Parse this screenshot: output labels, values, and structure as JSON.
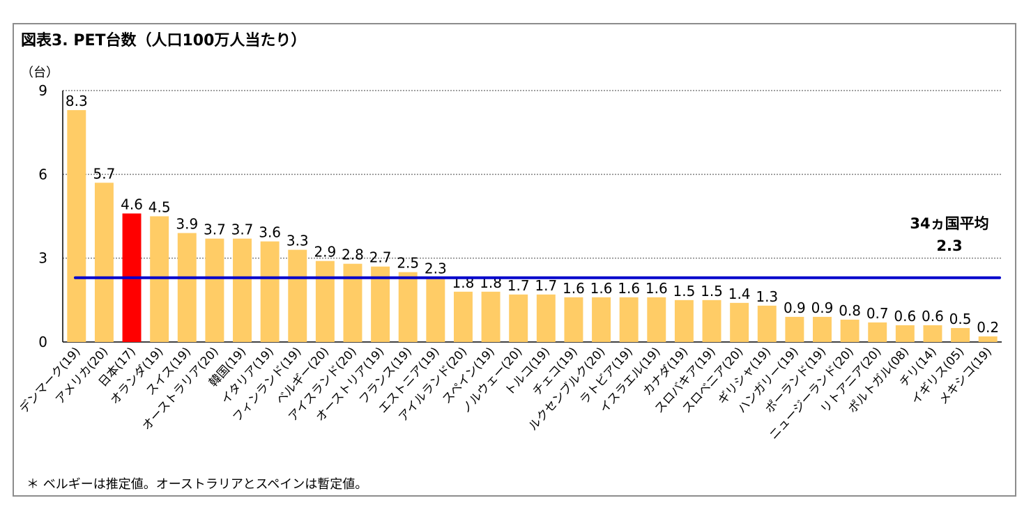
{
  "chart_data": {
    "type": "bar",
    "title": "図表3. PET台数（人口100万人当たり）",
    "ylabel": "（台）",
    "ylim": [
      0,
      9
    ],
    "yticks": [
      0,
      3,
      6,
      9
    ],
    "grid": true,
    "categories": [
      "デンマーク(19)",
      "アメリカ(20)",
      "日本(17)",
      "オランダ(19)",
      "スイス(19)",
      "オーストラリア(20)",
      "韓国(19)",
      "イタリア(19)",
      "フィンランド(19)",
      "ベルギー(20)",
      "アイスランド(20)",
      "オーストリア(19)",
      "フランス(19)",
      "エストニア(19)",
      "アイルランド(20)",
      "スペイン(19)",
      "ノルウェー(20)",
      "トルコ(19)",
      "チェコ(19)",
      "ルクセンブルク(20)",
      "ラトビア(19)",
      "イスラエル(19)",
      "カナダ(19)",
      "スロバキア(19)",
      "スロベニア(20)",
      "ギリシャ(19)",
      "ハンガリー(19)",
      "ポーランド(19)",
      "ニュージーランド(20)",
      "リトアニア(20)",
      "ポルトガル(08)",
      "チリ(14)",
      "イギリス(05)",
      "メキシコ(19)"
    ],
    "values": [
      8.3,
      5.7,
      4.6,
      4.5,
      3.9,
      3.7,
      3.7,
      3.6,
      3.3,
      2.9,
      2.8,
      2.7,
      2.5,
      2.3,
      1.8,
      1.8,
      1.7,
      1.7,
      1.6,
      1.6,
      1.6,
      1.6,
      1.5,
      1.5,
      1.4,
      1.3,
      0.9,
      0.9,
      0.8,
      0.7,
      0.6,
      0.6,
      0.5,
      0.2
    ],
    "value_labels": [
      "8.3",
      "5.7",
      "4.6",
      "4.5",
      "3.9",
      "3.7",
      "3.7",
      "3.6",
      "3.3",
      "2.9",
      "2.8",
      "2.7",
      "2.5",
      "2.3",
      "1.8",
      "1.8",
      "1.7",
      "1.7",
      "1.6",
      "1.6",
      "1.6",
      "1.6",
      "1.5",
      "1.5",
      "1.4",
      "1.3",
      "0.9",
      "0.9",
      "0.8",
      "0.7",
      "0.6",
      "0.6",
      "0.5",
      "0.2"
    ],
    "highlight_index": 2,
    "colors": {
      "bar": "#ffcc66",
      "highlight": "#ff0000",
      "average_line": "#0000cc",
      "grid": "#808080"
    },
    "average": {
      "value": 2.3,
      "label_line1": "34ヵ国平均",
      "label_line2": "2.3"
    }
  },
  "footnote": "＊ ベルギーは推定値。オーストラリアとスペインは暫定値。"
}
